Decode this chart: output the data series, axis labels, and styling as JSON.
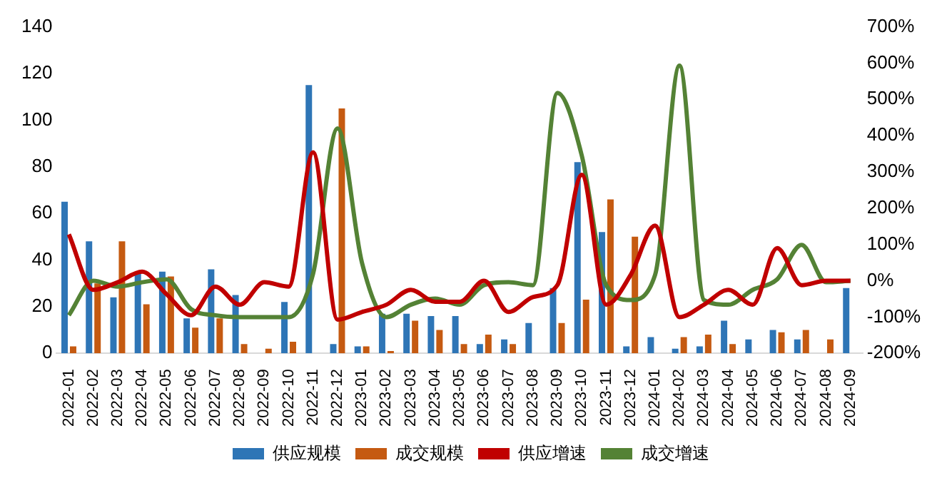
{
  "chart_data": {
    "type": "bar",
    "categories": [
      "2022-01",
      "2022-02",
      "2022-03",
      "2022-04",
      "2022-05",
      "2022-06",
      "2022-07",
      "2022-08",
      "2022-09",
      "2022-10",
      "2022-11",
      "2022-12",
      "2023-01",
      "2023-02",
      "2023-03",
      "2023-04",
      "2023-05",
      "2023-06",
      "2023-07",
      "2023-08",
      "2023-09",
      "2023-10",
      "2023-11",
      "2023-12",
      "2024-01",
      "2024-02",
      "2024-03",
      "2024-04",
      "2024-05",
      "2024-06",
      "2024-07",
      "2024-08",
      "2024-09"
    ],
    "series": [
      {
        "name": "供应规模",
        "color": "#2e75b6",
        "values": [
          65,
          48,
          24,
          35,
          35,
          15,
          36,
          25,
          0,
          22,
          115,
          4,
          3,
          17,
          17,
          16,
          16,
          4,
          6,
          13,
          28,
          82,
          52,
          3,
          7,
          2,
          3,
          14,
          6,
          10,
          6,
          0,
          28
        ]
      },
      {
        "name": "成交规模",
        "color": "#c55a11",
        "values": [
          3,
          30,
          48,
          21,
          33,
          11,
          15,
          4,
          2,
          5,
          0,
          105,
          3,
          1,
          14,
          10,
          4,
          8,
          4,
          0,
          13,
          23,
          66,
          50,
          0,
          7,
          8,
          4,
          0,
          9,
          10,
          6,
          0
        ]
      },
      {
        "name": "供应增速",
        "type": "line",
        "axis": "y2",
        "color": "#c00000",
        "values": [
          128,
          -25,
          -4,
          25,
          -37,
          -95,
          -16,
          -66,
          -4,
          -16,
          354,
          -107,
          -86,
          -66,
          -25,
          -58,
          -58,
          0,
          -86,
          -45,
          -12,
          292,
          -66,
          16,
          152,
          -100,
          -66,
          -25,
          -66,
          90,
          -12,
          0,
          0
        ]
      },
      {
        "name": "成交增速",
        "type": "line",
        "axis": "y2",
        "color": "#548235",
        "values": [
          -95,
          0,
          -16,
          -4,
          4,
          -78,
          -95,
          -100,
          -100,
          -100,
          20,
          420,
          50,
          -100,
          -66,
          -49,
          -66,
          -12,
          -4,
          -12,
          518,
          345,
          -12,
          -53,
          16,
          593,
          -53,
          -66,
          -25,
          4,
          99,
          -4,
          0
        ]
      }
    ],
    "ylim": [
      0,
      140
    ],
    "yticks": [
      0,
      20,
      40,
      60,
      80,
      100,
      120,
      140
    ],
    "y2lim": [
      -200,
      700
    ],
    "y2ticks": [
      {
        "value": -200,
        "label": "-200%"
      },
      {
        "value": -100,
        "label": "-100%"
      },
      {
        "value": 0,
        "label": "0%"
      },
      {
        "value": 100,
        "label": "100%"
      },
      {
        "value": 200,
        "label": "200%"
      },
      {
        "value": 300,
        "label": "300%"
      },
      {
        "value": 400,
        "label": "400%"
      },
      {
        "value": 500,
        "label": "500%"
      },
      {
        "value": 600,
        "label": "600%"
      },
      {
        "value": 700,
        "label": "700%"
      }
    ],
    "grid": false,
    "legend": "bottom",
    "marker": "none",
    "line_style": "solid"
  }
}
